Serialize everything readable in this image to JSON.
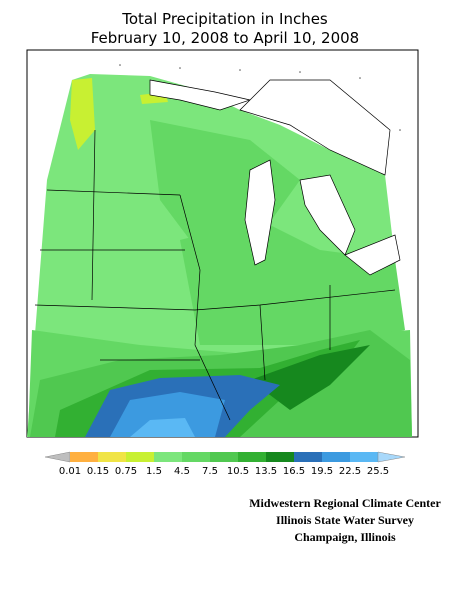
{
  "title": [
    "Total Precipitation in Inches",
    "February 10, 2008 to April 10, 2008"
  ],
  "legend": {
    "labels": [
      "0.01",
      "0.15",
      "0.75",
      "1.5",
      "4.5",
      "7.5",
      "10.5",
      "13.5",
      "16.5",
      "19.5",
      "22.5",
      "25.5"
    ],
    "colors": [
      "#bebebe",
      "#ffb040",
      "#f0e446",
      "#c8f032",
      "#7ce67c",
      "#64d864",
      "#50c850",
      "#32b032",
      "#16881e",
      "#2a70b8",
      "#3c9ae0",
      "#5ab8f4",
      "#a8d8fa"
    ]
  },
  "credits": [
    "Midwestern Regional Climate Center",
    "Illinois State Water Survey",
    "Champaign, Illinois"
  ]
}
